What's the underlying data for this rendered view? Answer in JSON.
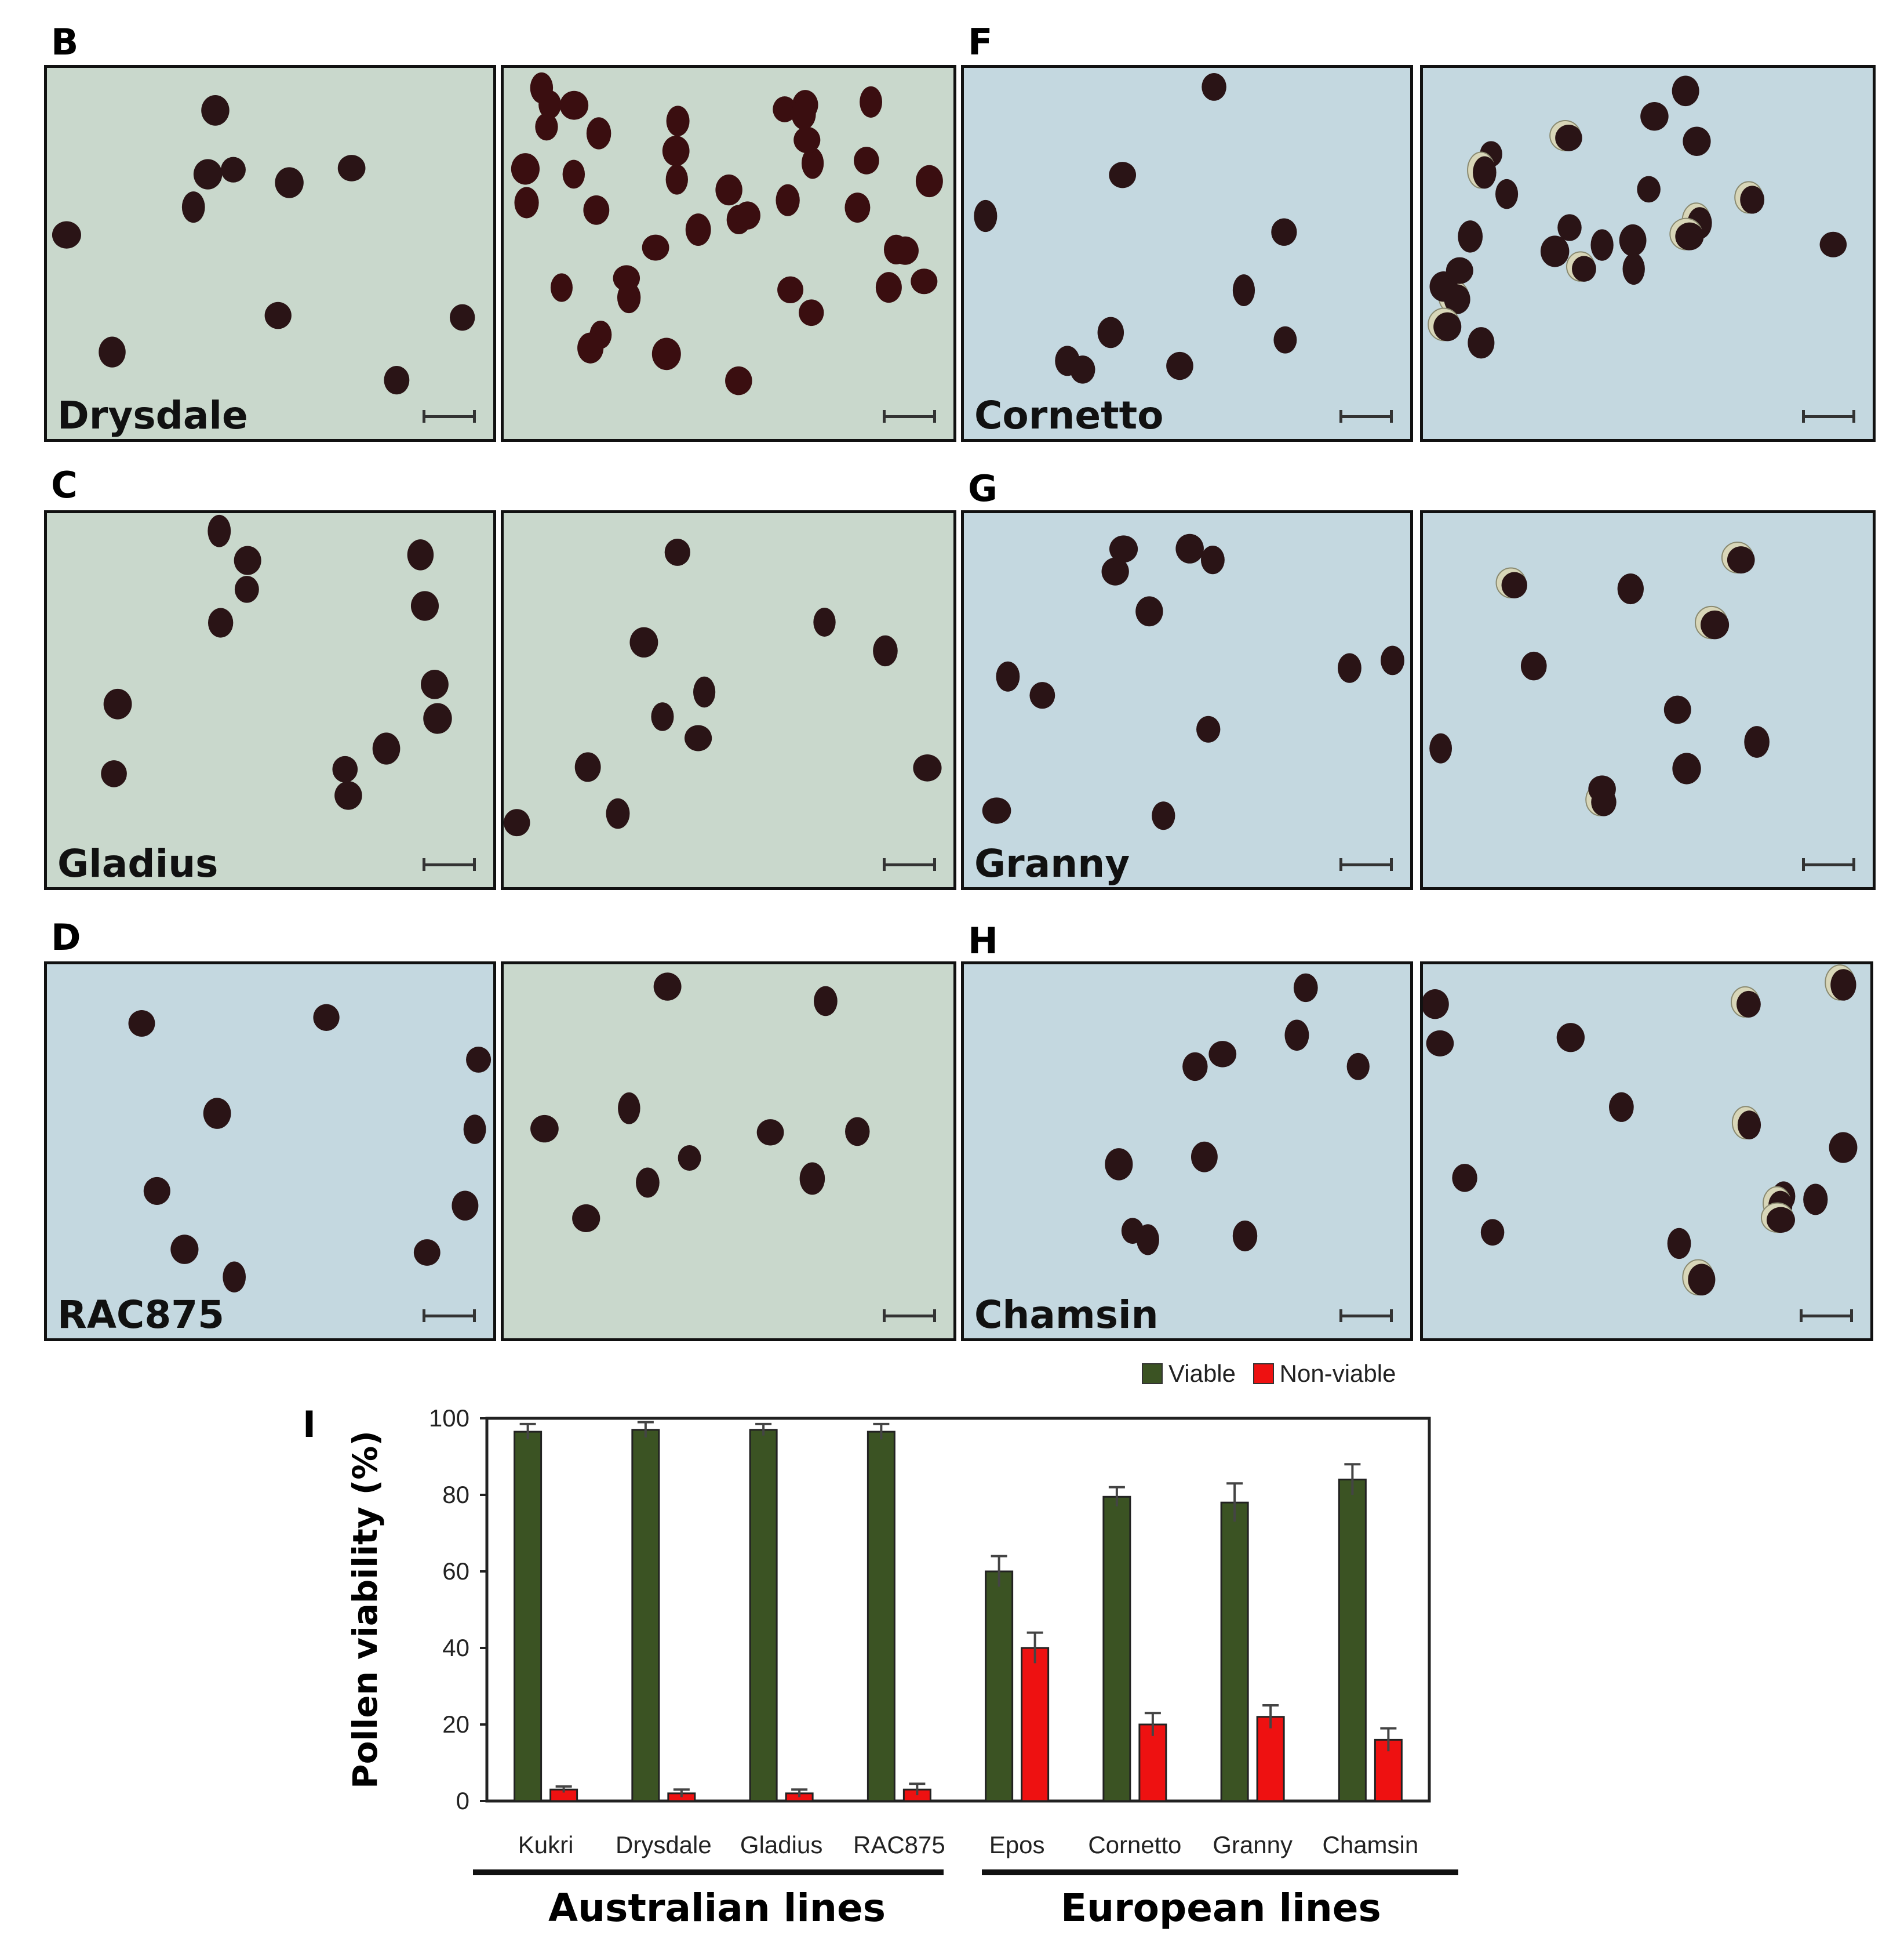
{
  "panels": [
    {
      "letter": "B",
      "line": "Drysdale"
    },
    {
      "letter": "C",
      "line": "Gladius"
    },
    {
      "letter": "D",
      "line": "RAC875"
    },
    {
      "letter": "F",
      "line": "Cornetto"
    },
    {
      "letter": "G",
      "line": "Granny"
    },
    {
      "letter": "H",
      "line": "Chamsin"
    }
  ],
  "colors": {
    "viable": "#3b5323",
    "non_viable": "#ee1111",
    "bg_green": "#c9d8cc",
    "bg_blue": "#c4d8e0",
    "pollen": "#2a1416"
  },
  "chart_letter": "I",
  "legend": {
    "viable": "Viable",
    "non_viable": "Non-viable"
  },
  "groups": {
    "australian": "Australian lines",
    "european": "European lines"
  },
  "chart_data": {
    "type": "bar",
    "title": "",
    "xlabel": "",
    "ylabel": "Pollen viability (%)",
    "ylim": [
      0,
      100
    ],
    "yticks": [
      0,
      20,
      40,
      60,
      80,
      100
    ],
    "categories": [
      "Kukri",
      "Drysdale",
      "Gladius",
      "RAC875",
      "Epos",
      "Cornetto",
      "Granny",
      "Chamsin"
    ],
    "series": [
      {
        "name": "Viable",
        "values": [
          96.5,
          97,
          97,
          96.5,
          60,
          79.5,
          78,
          84
        ],
        "errors": [
          2,
          2,
          1.5,
          2,
          4,
          2.5,
          5,
          4
        ]
      },
      {
        "name": "Non-viable",
        "values": [
          3,
          2,
          2,
          3,
          40,
          20,
          22,
          16
        ],
        "errors": [
          0.8,
          1,
          1,
          1.5,
          4,
          3,
          3,
          3
        ]
      }
    ],
    "legend_position": "top-right"
  }
}
